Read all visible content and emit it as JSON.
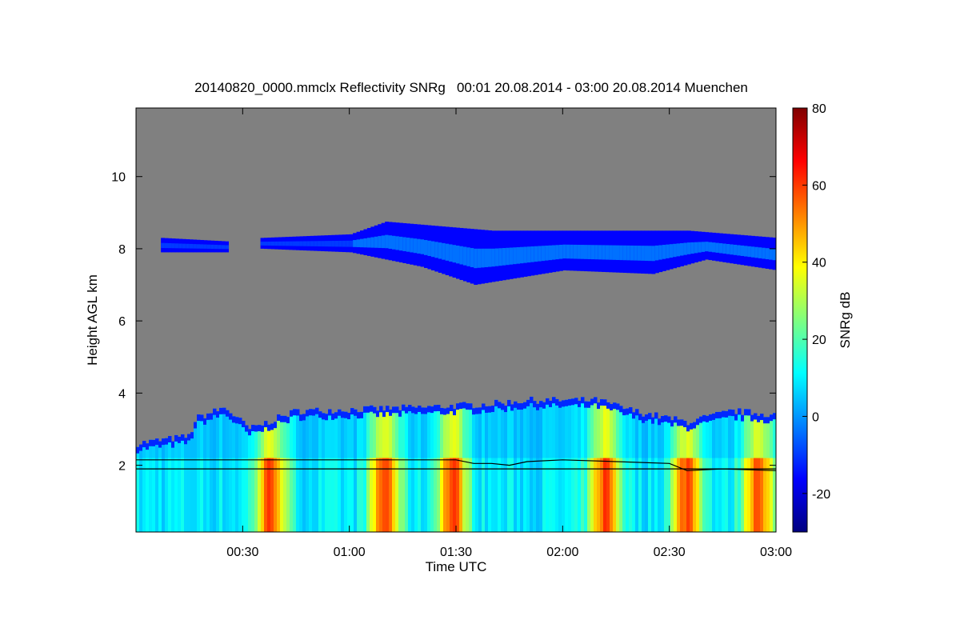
{
  "chart_data": {
    "type": "heatmap",
    "title": "20140820_0000.mmclx Reflectivity SNRg   00:01 20.08.2014 - 03:00 20.08.2014 Muenchen",
    "xlabel": "Time UTC",
    "ylabel": "Height AGL km",
    "colorbar_label": "SNRg dB",
    "x_unit": "minutes after 00:00 UTC",
    "xlim": [
      0,
      180
    ],
    "ylim": [
      0.15,
      11.9
    ],
    "clim": [
      -30,
      80
    ],
    "x_ticks": [
      {
        "value": 30,
        "label": "00:30"
      },
      {
        "value": 60,
        "label": "01:00"
      },
      {
        "value": 90,
        "label": "01:30"
      },
      {
        "value": 120,
        "label": "02:00"
      },
      {
        "value": 150,
        "label": "02:30"
      },
      {
        "value": 180,
        "label": "03:00"
      }
    ],
    "y_ticks": [
      {
        "value": 2,
        "label": "2"
      },
      {
        "value": 4,
        "label": "4"
      },
      {
        "value": 6,
        "label": "6"
      },
      {
        "value": 8,
        "label": "8"
      },
      {
        "value": 10,
        "label": "10"
      }
    ],
    "colorbar_ticks": [
      {
        "value": -20,
        "label": "-20"
      },
      {
        "value": 0,
        "label": "0"
      },
      {
        "value": 20,
        "label": "20"
      },
      {
        "value": 40,
        "label": "40"
      },
      {
        "value": 60,
        "label": "60"
      },
      {
        "value": 80,
        "label": "80"
      }
    ],
    "no_data_color": "#808080",
    "colormap": [
      "#00007f",
      "#0000ff",
      "#007fff",
      "#00ffff",
      "#7fff7f",
      "#ffff00",
      "#ff7f00",
      "#ff0000",
      "#7f0000"
    ],
    "upper_cloud": {
      "segments": [
        [
          7,
          26
        ],
        [
          35,
          180
        ]
      ],
      "top_km": [
        [
          7,
          8.3
        ],
        [
          26,
          8.2
        ],
        [
          35,
          8.3
        ],
        [
          60,
          8.4
        ],
        [
          70,
          8.75
        ],
        [
          100,
          8.5
        ],
        [
          130,
          8.5
        ],
        [
          155,
          8.5
        ],
        [
          180,
          8.3
        ]
      ],
      "base_km": [
        [
          7,
          7.9
        ],
        [
          26,
          7.9
        ],
        [
          35,
          8.0
        ],
        [
          60,
          7.9
        ],
        [
          80,
          7.5
        ],
        [
          95,
          7.0
        ],
        [
          120,
          7.4
        ],
        [
          145,
          7.3
        ],
        [
          160,
          7.7
        ],
        [
          180,
          7.4
        ]
      ]
    },
    "lower_cloud_top_km": [
      [
        0,
        2.6
      ],
      [
        15,
        2.8
      ],
      [
        17,
        3.3
      ],
      [
        25,
        3.6
      ],
      [
        32,
        3.0
      ],
      [
        45,
        3.5
      ],
      [
        80,
        3.6
      ],
      [
        100,
        3.7
      ],
      [
        110,
        3.8
      ],
      [
        130,
        3.8
      ],
      [
        140,
        3.5
      ],
      [
        155,
        3.2
      ],
      [
        168,
        3.5
      ],
      [
        180,
        3.4
      ]
    ],
    "high_reflectivity_bands_minutes": [
      38,
      70,
      89,
      132,
      155,
      175
    ],
    "boundary_layer_line_km": [
      [
        0,
        2.15
      ],
      [
        90,
        2.15
      ],
      [
        95,
        2.05
      ],
      [
        100,
        2.05
      ],
      [
        105,
        2.0
      ],
      [
        110,
        2.1
      ],
      [
        120,
        2.15
      ],
      [
        135,
        2.1
      ],
      [
        150,
        2.05
      ],
      [
        155,
        1.85
      ],
      [
        165,
        1.9
      ],
      [
        180,
        1.85
      ]
    ],
    "reference_line_km": [
      [
        0,
        1.9
      ],
      [
        103,
        1.9
      ],
      [
        180,
        1.9
      ]
    ]
  }
}
